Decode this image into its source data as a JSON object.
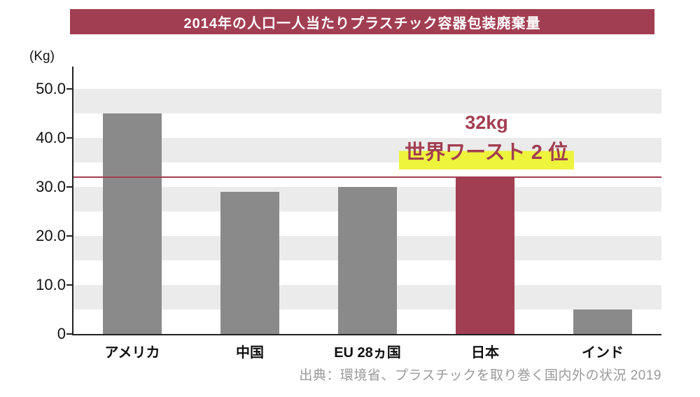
{
  "banner": {
    "title": "2014年の人口一人当たりプラスチック容器包装廃棄量"
  },
  "annotation": {
    "value_label": "32kg",
    "rank_label": "世界ワースト 2 位"
  },
  "source_text": "出典：環境省、プラスチックを取り巻く国内外の状況 2019",
  "colors": {
    "accent": "#a23e52",
    "bar": "#8a8a8a",
    "highlight_marker": "#eef43c",
    "stripe": "#ebebeb"
  },
  "chart_data": {
    "type": "bar",
    "title": "2014年の人口一人当たりプラスチック容器包装廃棄量",
    "categories": [
      "アメリカ",
      "中国",
      "EU 28ヵ国",
      "日本",
      "インド"
    ],
    "values": [
      45,
      29,
      30,
      32,
      5
    ],
    "highlight_index": 3,
    "highlight_category": "日本",
    "xlabel": "",
    "ylabel": "(Kg)",
    "ylim": [
      0,
      50
    ],
    "yticks": [
      0,
      10,
      20,
      30,
      40,
      50
    ],
    "ytick_labels": [
      "0",
      "10.0",
      "20.0",
      "30.0",
      "40.0",
      "50.0"
    ],
    "reference_line": 32,
    "grid": "horizontal-striped-bands",
    "legend": "none",
    "annotations": [
      "32kg",
      "世界ワースト 2 位"
    ]
  }
}
